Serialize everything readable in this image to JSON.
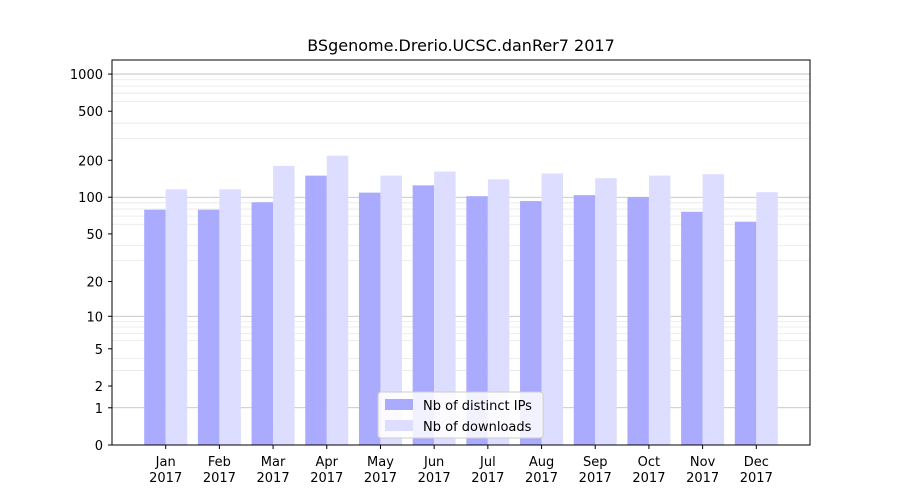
{
  "chart_data": {
    "type": "bar",
    "title": "BSgenome.Drerio.UCSC.danRer7 2017",
    "xlabel": "",
    "ylabel": "",
    "yscale": "log(1+y)",
    "ylim": [
      0,
      1300
    ],
    "grid": true,
    "legend_position": "lower-center",
    "categories": [
      [
        "Jan",
        "2017"
      ],
      [
        "Feb",
        "2017"
      ],
      [
        "Mar",
        "2017"
      ],
      [
        "Apr",
        "2017"
      ],
      [
        "May",
        "2017"
      ],
      [
        "Jun",
        "2017"
      ],
      [
        "Jul",
        "2017"
      ],
      [
        "Aug",
        "2017"
      ],
      [
        "Sep",
        "2017"
      ],
      [
        "Oct",
        "2017"
      ],
      [
        "Nov",
        "2017"
      ],
      [
        "Dec",
        "2017"
      ]
    ],
    "yticks": [
      0,
      1,
      2,
      5,
      10,
      20,
      50,
      100,
      200,
      500,
      1000
    ],
    "series": [
      {
        "name": "Nb of distinct IPs",
        "color": "#aaaaff",
        "values": [
          79,
          79,
          91,
          150,
          109,
          125,
          102,
          93,
          104,
          100,
          76,
          63
        ]
      },
      {
        "name": "Nb of downloads",
        "color": "#ddddff",
        "values": [
          116,
          116,
          180,
          218,
          150,
          162,
          140,
          156,
          143,
          150,
          154,
          110
        ]
      }
    ]
  }
}
